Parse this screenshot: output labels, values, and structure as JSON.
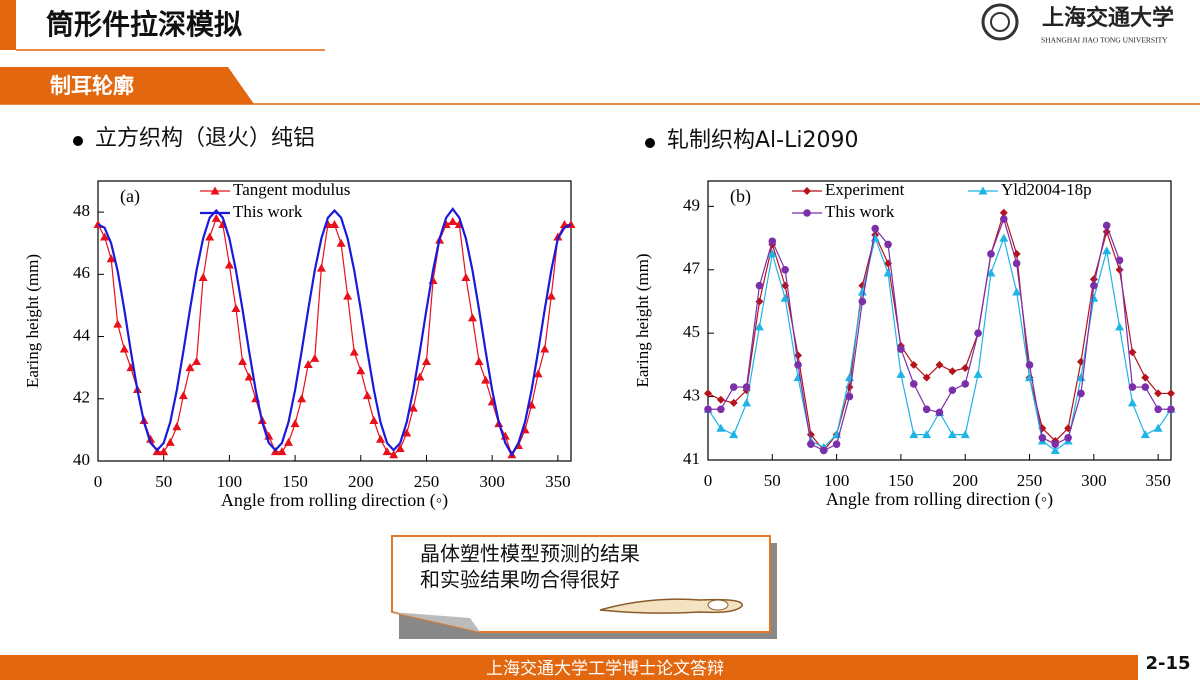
{
  "header": {
    "title": "筒形件拉深模拟",
    "logo_cn": "上海交通大学",
    "logo_en": "SHANGHAI JIAO TONG UNIVERSITY"
  },
  "section": "制耳轮廓",
  "bullets": [
    "立方织构（退火）纯铝",
    "轧制织构Al-Li2090"
  ],
  "chart_data": [
    {
      "type": "line",
      "panel_label": "(a)",
      "x_label": "Angle from rolling direction (◦)",
      "y_label": "Earing height (mm)",
      "xlim": [
        0,
        360
      ],
      "ylim": [
        40,
        49
      ],
      "xticks": [
        0,
        50,
        100,
        150,
        200,
        250,
        300,
        350
      ],
      "yticks": [
        40,
        42,
        44,
        46,
        48
      ],
      "x": [
        0,
        5,
        10,
        15,
        20,
        25,
        30,
        35,
        40,
        45,
        50,
        55,
        60,
        65,
        70,
        75,
        80,
        85,
        90,
        95,
        100,
        105,
        110,
        115,
        120,
        125,
        130,
        135,
        140,
        145,
        150,
        155,
        160,
        165,
        170,
        175,
        180,
        185,
        190,
        195,
        200,
        205,
        210,
        215,
        220,
        225,
        230,
        235,
        240,
        245,
        250,
        255,
        260,
        265,
        270,
        275,
        280,
        285,
        290,
        295,
        300,
        305,
        310,
        315,
        320,
        325,
        330,
        335,
        340,
        345,
        350,
        355,
        360
      ],
      "series": [
        {
          "name": "Tangent modulus",
          "color": "#e8101a",
          "marker": "triangle",
          "values": [
            47.6,
            47.2,
            46.5,
            44.4,
            43.6,
            43.0,
            42.3,
            41.3,
            40.7,
            40.3,
            40.3,
            40.6,
            41.1,
            42.1,
            43.0,
            43.2,
            45.9,
            47.2,
            47.8,
            47.6,
            46.3,
            44.9,
            43.2,
            42.7,
            42.0,
            41.3,
            40.8,
            40.3,
            40.3,
            40.6,
            41.2,
            42.0,
            43.1,
            43.3,
            46.2,
            47.6,
            47.6,
            47.0,
            45.3,
            43.5,
            42.9,
            42.1,
            41.3,
            40.7,
            40.3,
            40.2,
            40.4,
            40.9,
            41.7,
            42.7,
            43.2,
            45.8,
            47.1,
            47.6,
            47.7,
            47.6,
            45.9,
            44.6,
            43.2,
            42.6,
            41.9,
            41.2,
            40.8,
            40.2,
            40.5,
            41.0,
            41.8,
            42.8,
            43.6,
            45.3,
            47.2,
            47.6,
            47.6
          ]
        },
        {
          "name": "This work",
          "color": "#1a1adc",
          "marker": "none",
          "values": [
            47.6,
            47.5,
            47.0,
            46.1,
            44.87,
            43.53,
            42.28,
            41.25,
            40.58,
            40.35,
            40.58,
            41.25,
            42.28,
            43.53,
            44.87,
            46.13,
            47.15,
            47.82,
            48.05,
            47.82,
            47.15,
            46.13,
            44.87,
            43.53,
            42.28,
            41.25,
            40.58,
            40.35,
            40.58,
            41.25,
            42.28,
            43.53,
            44.87,
            46.13,
            47.15,
            47.82,
            48.05,
            47.82,
            47.15,
            46.13,
            44.87,
            43.53,
            42.28,
            41.25,
            40.58,
            40.35,
            40.58,
            41.25,
            42.28,
            43.53,
            44.87,
            46.13,
            47.15,
            47.82,
            48.1,
            47.82,
            47.15,
            46.13,
            44.87,
            43.53,
            42.28,
            41.25,
            40.58,
            40.2,
            40.58,
            41.25,
            42.28,
            43.53,
            44.87,
            46.13,
            47.15,
            47.5,
            47.6
          ]
        }
      ]
    },
    {
      "type": "line",
      "panel_label": "(b)",
      "x_label": "Angle from rolling direction (◦)",
      "y_label": "Earing height (mm)",
      "xlim": [
        0,
        360
      ],
      "ylim": [
        41,
        49.8
      ],
      "xticks": [
        0,
        50,
        100,
        150,
        200,
        250,
        300,
        350
      ],
      "yticks": [
        41,
        43,
        45,
        47,
        49
      ],
      "x": [
        0,
        10,
        20,
        30,
        40,
        50,
        60,
        70,
        80,
        90,
        100,
        110,
        120,
        130,
        140,
        150,
        160,
        170,
        180,
        190,
        200,
        210,
        220,
        230,
        240,
        250,
        260,
        270,
        280,
        290,
        300,
        310,
        320,
        330,
        340,
        350,
        360
      ],
      "series": [
        {
          "name": "Experiment",
          "color": "#b5121b",
          "marker": "diamond",
          "values": [
            43.1,
            42.9,
            42.8,
            43.2,
            46.0,
            47.8,
            46.5,
            44.3,
            41.8,
            41.3,
            41.8,
            43.3,
            46.5,
            48.1,
            47.2,
            44.6,
            44.0,
            43.6,
            44.0,
            43.8,
            43.9,
            45.0,
            47.5,
            48.8,
            47.5,
            43.6,
            42.0,
            41.6,
            42.0,
            44.1,
            46.7,
            48.2,
            47.0,
            44.4,
            43.6,
            43.1,
            43.1
          ]
        },
        {
          "name": "Yld2004-18p",
          "color": "#1fb4e6",
          "marker": "triangle",
          "values": [
            42.6,
            42.0,
            41.8,
            42.8,
            45.2,
            47.5,
            46.1,
            43.6,
            41.6,
            41.4,
            41.8,
            43.6,
            46.3,
            48.0,
            46.9,
            43.7,
            41.8,
            41.8,
            42.5,
            41.8,
            41.8,
            43.7,
            46.9,
            48.0,
            46.3,
            43.6,
            41.6,
            41.3,
            41.6,
            43.6,
            46.1,
            47.6,
            45.2,
            42.8,
            41.8,
            42.0,
            42.6
          ]
        },
        {
          "name": "This work",
          "color": "#7b2fa8",
          "marker": "circle",
          "values": [
            42.6,
            42.6,
            43.3,
            43.3,
            46.5,
            47.9,
            47.0,
            44.0,
            41.5,
            41.3,
            41.5,
            43.0,
            46.0,
            48.3,
            47.8,
            44.5,
            43.4,
            42.6,
            42.5,
            43.2,
            43.4,
            45.0,
            47.5,
            48.6,
            47.2,
            44.0,
            41.7,
            41.5,
            41.7,
            43.1,
            46.5,
            48.4,
            47.3,
            43.3,
            43.3,
            42.6,
            42.6
          ]
        }
      ]
    }
  ],
  "callout": [
    "晶体塑性模型预测的结果",
    "和实验结果吻合得很好"
  ],
  "footer": "上海交通大学工学博士论文答辩",
  "page_number": "2-15"
}
